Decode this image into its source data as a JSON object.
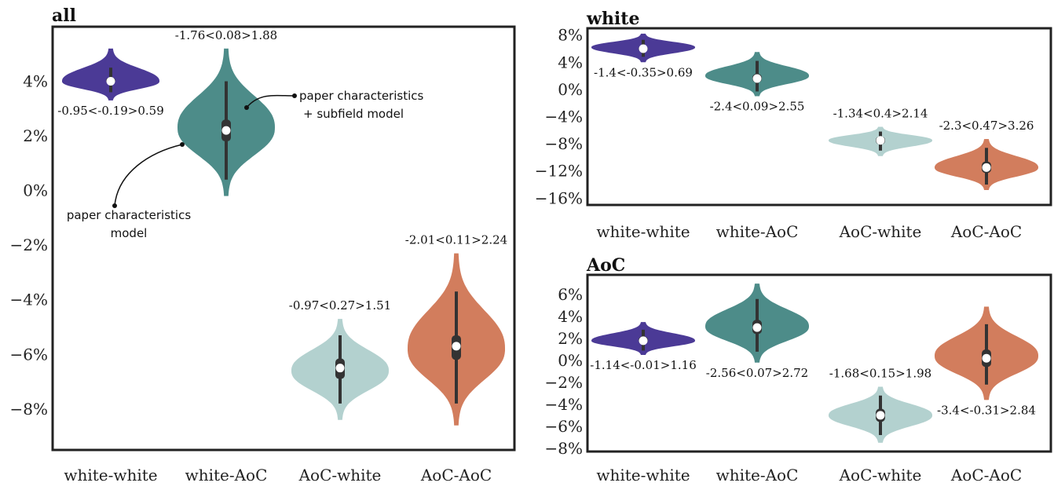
{
  "palette": {
    "white-white": "#4b3a96",
    "white-AoC": "#4d8c89",
    "AoC-white": "#b3d1cf",
    "AoC-AoC": "#d27d5d"
  },
  "chart_data": [
    {
      "id": "all",
      "type": "violin",
      "title": "all",
      "categories": [
        "white-white",
        "white-AoC",
        "AoC-white",
        "AoC-AoC"
      ],
      "ylim": [
        -9.5,
        6.0
      ],
      "yticks": [
        4,
        2,
        0,
        -2,
        -4,
        -6,
        -8
      ],
      "ytick_labels": [
        "4%",
        "2%",
        "0%",
        "−2%",
        "−4%",
        "−6%",
        "−8%"
      ],
      "grid": false,
      "series": [
        {
          "category": "white-white",
          "min": 3.3,
          "max": 5.2,
          "median": 4.0,
          "q1": 3.9,
          "q3": 4.15,
          "w_lo": 3.6,
          "w_hi": 4.5,
          "mode": 4.0,
          "annotation": "-0.95<-0.19>0.59",
          "ann_side": "below"
        },
        {
          "category": "white-AoC",
          "min": -0.2,
          "max": 5.2,
          "median": 2.2,
          "q1": 1.8,
          "q3": 2.6,
          "w_lo": 0.4,
          "w_hi": 4.0,
          "mode": 2.3,
          "annotation": "-1.76<0.08>1.88",
          "ann_side": "above"
        },
        {
          "category": "AoC-white",
          "min": -8.4,
          "max": -4.7,
          "median": -6.5,
          "q1": -6.9,
          "q3": -6.15,
          "w_lo": -7.8,
          "w_hi": -5.3,
          "mode": -6.6,
          "annotation": "-0.97<0.27>1.51",
          "ann_side": "above"
        },
        {
          "category": "AoC-AoC",
          "min": -8.6,
          "max": -2.3,
          "median": -5.7,
          "q1": -6.2,
          "q3": -5.3,
          "w_lo": -7.8,
          "w_hi": -3.7,
          "mode": -5.8,
          "annotation": "-2.01<0.11>2.24",
          "ann_side": "above"
        }
      ],
      "callouts": [
        {
          "lines": [
            "paper characteristics",
            "+ subfield model"
          ],
          "target": "white-AoC"
        },
        {
          "lines": [
            "paper characteristics",
            "model"
          ],
          "target": "white-AoC"
        }
      ]
    },
    {
      "id": "white",
      "type": "violin",
      "title": "white",
      "categories": [
        "white-white",
        "white-AoC",
        "AoC-white",
        "AoC-AoC"
      ],
      "ylim": [
        -17.0,
        9.0
      ],
      "yticks": [
        8,
        4,
        0,
        -4,
        -8,
        -12,
        -16
      ],
      "ytick_labels": [
        "8%",
        "4%",
        "0%",
        "−4%",
        "−8%",
        "−12%",
        "−16%"
      ],
      "grid": false,
      "series": [
        {
          "category": "white-white",
          "min": 4.0,
          "max": 8.2,
          "median": 6.0,
          "q1": 5.6,
          "q3": 6.4,
          "w_lo": 4.8,
          "w_hi": 7.3,
          "mode": 6.2,
          "annotation": "-1.4<-0.35>0.69",
          "ann_side": "below"
        },
        {
          "category": "white-AoC",
          "min": -1.0,
          "max": 5.5,
          "median": 1.6,
          "q1": 1.0,
          "q3": 2.3,
          "w_lo": -0.3,
          "w_hi": 4.2,
          "mode": 2.0,
          "annotation": "-2.4<0.09>2.55",
          "ann_side": "below"
        },
        {
          "category": "AoC-white",
          "min": -9.8,
          "max": -5.5,
          "median": -7.5,
          "q1": -8.1,
          "q3": -6.9,
          "w_lo": -9.0,
          "w_hi": -6.2,
          "mode": -7.5,
          "annotation": "-1.34<0.4>2.14",
          "ann_side": "above"
        },
        {
          "category": "AoC-AoC",
          "min": -14.8,
          "max": -7.3,
          "median": -11.5,
          "q1": -12.3,
          "q3": -10.6,
          "w_lo": -14.0,
          "w_hi": -8.6,
          "mode": -11.5,
          "annotation": "-2.3<0.47>3.26",
          "ann_side": "above"
        }
      ]
    },
    {
      "id": "AoC",
      "type": "violin",
      "title": "AoC",
      "categories": [
        "white-white",
        "white-AoC",
        "AoC-white",
        "AoC-AoC"
      ],
      "ylim": [
        -8.3,
        7.8
      ],
      "yticks": [
        6,
        4,
        2,
        0,
        -2,
        -4,
        -6,
        -8
      ],
      "ytick_labels": [
        "6%",
        "4%",
        "2%",
        "0%",
        "−2%",
        "−4%",
        "−6%",
        "−8%"
      ],
      "grid": false,
      "series": [
        {
          "category": "white-white",
          "min": 0.5,
          "max": 3.5,
          "median": 1.8,
          "q1": 1.5,
          "q3": 2.2,
          "w_lo": 0.9,
          "w_hi": 2.8,
          "mode": 1.8,
          "annotation": "-1.14<-0.01>1.16",
          "ann_side": "below"
        },
        {
          "category": "white-AoC",
          "min": -0.2,
          "max": 7.0,
          "median": 3.0,
          "q1": 2.4,
          "q3": 3.7,
          "w_lo": 0.8,
          "w_hi": 5.6,
          "mode": 3.1,
          "annotation": "-2.56<0.07>2.72",
          "ann_side": "below"
        },
        {
          "category": "AoC-white",
          "min": -7.5,
          "max": -2.4,
          "median": -5.0,
          "q1": -5.6,
          "q3": -4.4,
          "w_lo": -6.8,
          "w_hi": -3.2,
          "mode": -5.0,
          "annotation": "-1.68<0.15>1.98",
          "ann_side": "above"
        },
        {
          "category": "AoC-AoC",
          "min": -3.6,
          "max": 4.9,
          "median": 0.2,
          "q1": -0.6,
          "q3": 1.0,
          "w_lo": -2.2,
          "w_hi": 3.3,
          "mode": 0.4,
          "annotation": "-3.4<-0.31>2.84",
          "ann_side": "below"
        }
      ]
    }
  ]
}
